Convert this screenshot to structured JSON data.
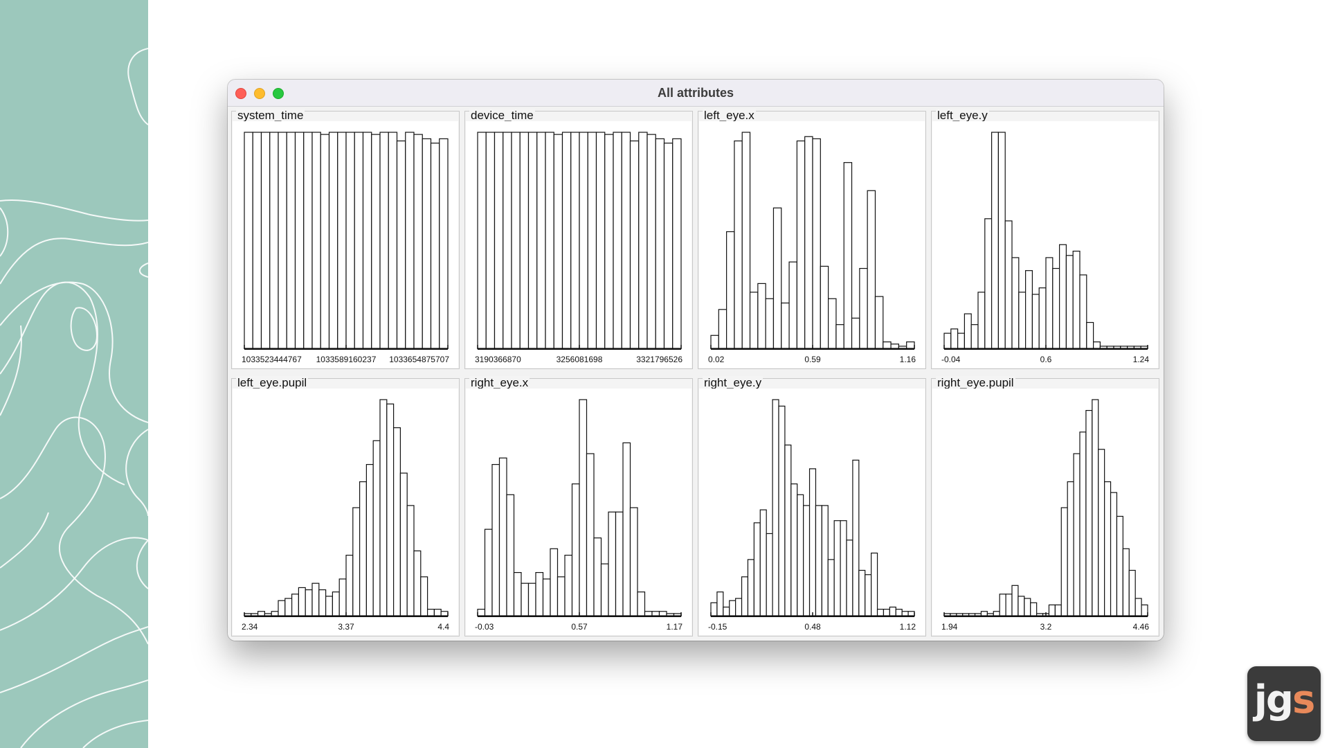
{
  "window": {
    "title": "All attributes"
  },
  "logo": {
    "part1": "jg",
    "part2": "s"
  },
  "colors": {
    "sidebar": "#9cc8bc",
    "close": "#fe5f57",
    "minimize": "#febc2e",
    "zoom": "#28c840",
    "logo_bg": "#3b3b3b",
    "logo_accent": "#e8895a"
  },
  "panels": [
    {
      "title": "system_time",
      "chart_data": {
        "type": "bar",
        "ticks": [
          "1033523444767",
          "1033589160237",
          "1033654875707"
        ],
        "values": [
          100,
          100,
          100,
          100,
          100,
          100,
          100,
          100,
          100,
          99,
          100,
          100,
          100,
          100,
          100,
          99,
          100,
          100,
          96,
          100,
          99,
          97,
          95,
          97
        ]
      }
    },
    {
      "title": "device_time",
      "chart_data": {
        "type": "bar",
        "ticks": [
          "3190366870",
          "3256081698",
          "3321796526"
        ],
        "values": [
          100,
          100,
          100,
          100,
          100,
          100,
          100,
          100,
          100,
          99,
          100,
          100,
          100,
          100,
          100,
          99,
          100,
          100,
          96,
          100,
          99,
          97,
          95,
          97
        ]
      }
    },
    {
      "title": "left_eye.x",
      "chart_data": {
        "type": "bar",
        "ticks": [
          "0.02",
          "0.59",
          "1.16"
        ],
        "values": [
          6,
          18,
          54,
          96,
          100,
          26,
          30,
          23,
          65,
          21,
          40,
          96,
          98,
          97,
          38,
          23,
          11,
          86,
          14,
          37,
          73,
          24,
          3,
          2,
          1,
          3
        ]
      }
    },
    {
      "title": "left_eye.y",
      "chart_data": {
        "type": "bar",
        "ticks": [
          "-0.04",
          "0.6",
          "1.24"
        ],
        "values": [
          7,
          9,
          7,
          16,
          11,
          26,
          60,
          100,
          100,
          59,
          42,
          26,
          36,
          25,
          28,
          42,
          37,
          48,
          43,
          45,
          34,
          12,
          3,
          1,
          1,
          1,
          1,
          1,
          1,
          1
        ]
      }
    },
    {
      "title": "left_eye.pupil",
      "chart_data": {
        "type": "bar",
        "ticks": [
          "2.34",
          "3.37",
          "4.4"
        ],
        "values": [
          1,
          1,
          2,
          1,
          2,
          7,
          8,
          10,
          13,
          12,
          15,
          12,
          9,
          11,
          17,
          28,
          50,
          62,
          70,
          81,
          100,
          98,
          87,
          66,
          51,
          30,
          18,
          3,
          3,
          2
        ]
      }
    },
    {
      "title": "right_eye.x",
      "chart_data": {
        "type": "bar",
        "ticks": [
          "-0.03",
          "0.57",
          "1.17"
        ],
        "values": [
          3,
          40,
          70,
          73,
          56,
          20,
          15,
          15,
          20,
          17,
          31,
          18,
          28,
          61,
          100,
          75,
          36,
          24,
          48,
          48,
          80,
          50,
          11,
          2,
          2,
          2,
          1,
          1
        ]
      }
    },
    {
      "title": "right_eye.y",
      "chart_data": {
        "type": "bar",
        "ticks": [
          "-0.15",
          "0.48",
          "1.12"
        ],
        "values": [
          6,
          11,
          4,
          7,
          8,
          18,
          26,
          43,
          49,
          38,
          100,
          97,
          79,
          61,
          56,
          51,
          68,
          51,
          51,
          26,
          44,
          44,
          35,
          72,
          21,
          19,
          29,
          3,
          3,
          4,
          3,
          2,
          2
        ]
      }
    },
    {
      "title": "right_eye.pupil",
      "chart_data": {
        "type": "bar",
        "ticks": [
          "1.94",
          "3.2",
          "4.46"
        ],
        "values": [
          1,
          1,
          1,
          1,
          1,
          1,
          2,
          1,
          2,
          10,
          10,
          14,
          9,
          8,
          6,
          1,
          1,
          5,
          5,
          50,
          62,
          75,
          85,
          95,
          100,
          77,
          62,
          57,
          46,
          31,
          21,
          8,
          5
        ]
      }
    }
  ]
}
